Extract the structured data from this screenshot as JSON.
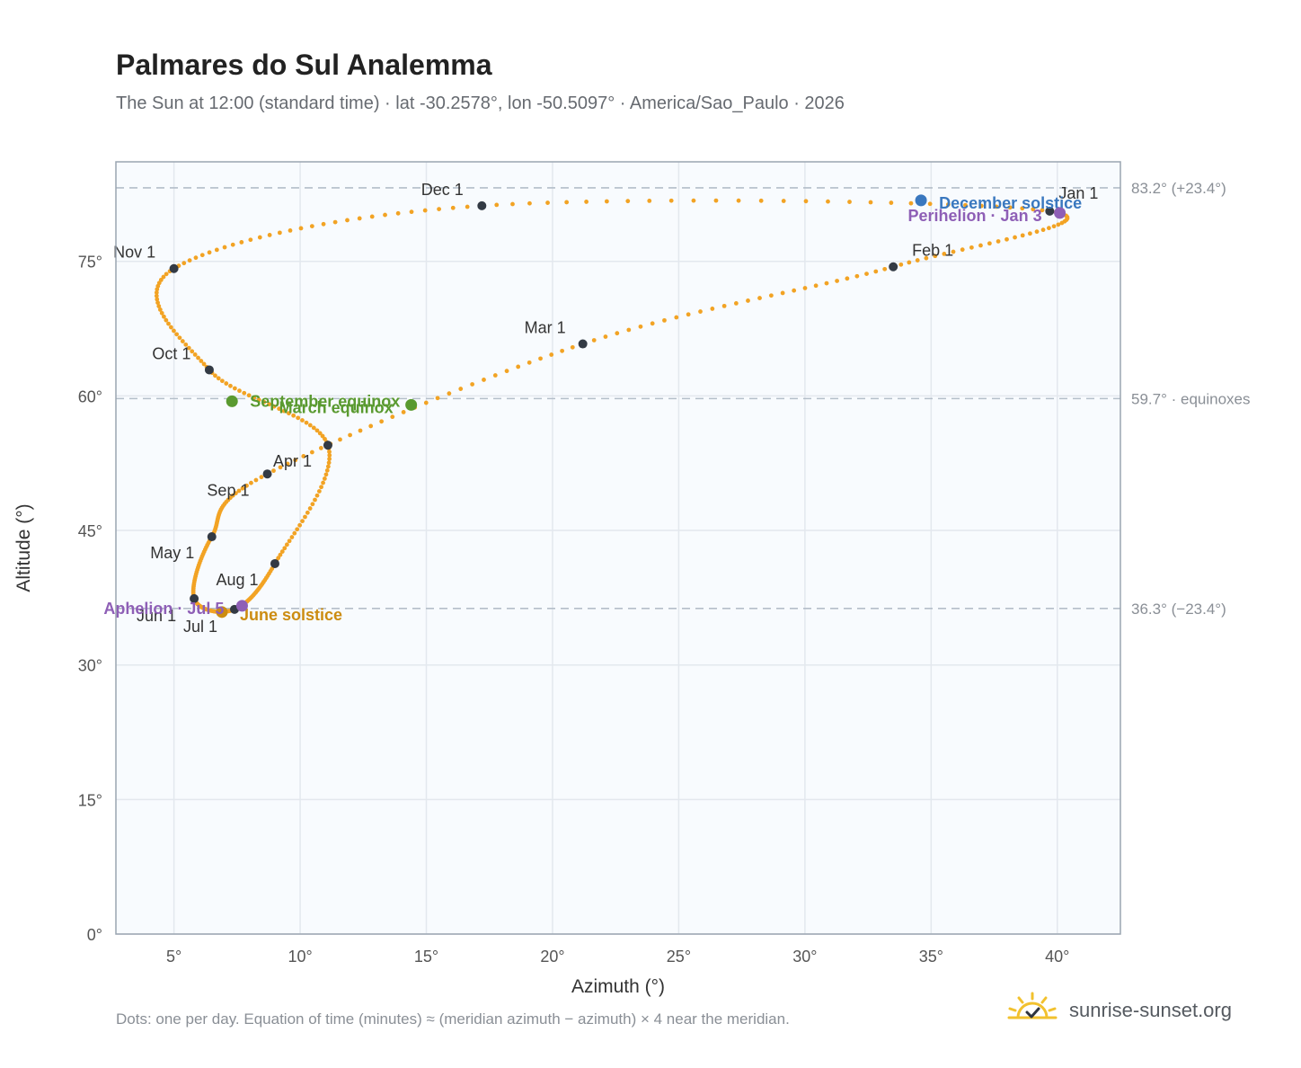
{
  "title": "Palmares do Sul Analemma",
  "subtitle": "The Sun at 12:00 (standard time) · lat -30.2578°, lon -50.5097° · America/Sao_Paulo · 2026",
  "footnote": "Dots: one per day. Equation of time (minutes) ≈ (meridian azimuth − azimuth) × 4 near the meridian.",
  "brand": {
    "name": "sunrise-sunset.org",
    "icon": "sun-logo-icon"
  },
  "colors": {
    "path": "#f2a324",
    "month_marker": "#333a44",
    "equinox": "#5a9a30",
    "december_solstice": "#3a78bf",
    "june_solstice": "#cc8c10",
    "apsis": "#8e5fb6",
    "plot_bg": "#f8fbfe",
    "grid": "#e3e8ee",
    "ref_line": "#b4bec9"
  },
  "chart_data": {
    "type": "scatter",
    "xlabel": "Azimuth (°)",
    "ylabel": "Altitude (°)",
    "xlim": [
      2.7,
      42.5
    ],
    "ylim": [
      0,
      86.1
    ],
    "x_ticks": [
      5,
      10,
      15,
      20,
      25,
      30,
      35,
      40
    ],
    "x_tick_labels": [
      "5°",
      "10°",
      "15°",
      "20°",
      "25°",
      "30°",
      "35°",
      "40°"
    ],
    "y_ticks": [
      0,
      15,
      30,
      45,
      60,
      75
    ],
    "y_tick_labels": [
      "0°",
      "15°",
      "30°",
      "45°",
      "60°",
      "75°"
    ],
    "grid": true,
    "reference_lines": [
      {
        "altitude": 83.2,
        "label": "83.2° (+23.4°)"
      },
      {
        "altitude": 59.7,
        "label": "59.7° · equinoxes"
      },
      {
        "altitude": 36.3,
        "label": "36.3° (−23.4°)"
      }
    ],
    "month_markers": [
      {
        "label": "Jan 1",
        "azimuth": 39.7,
        "altitude": 80.6
      },
      {
        "label": "Feb 1",
        "azimuth": 33.5,
        "altitude": 74.4
      },
      {
        "label": "Mar 1",
        "azimuth": 21.2,
        "altitude": 65.8
      },
      {
        "label": "Apr 1",
        "azimuth": 8.7,
        "altitude": 51.3
      },
      {
        "label": "May 1",
        "azimuth": 6.5,
        "altitude": 44.3
      },
      {
        "label": "Jun 1",
        "azimuth": 5.8,
        "altitude": 37.4
      },
      {
        "label": "Jul 1",
        "azimuth": 7.4,
        "altitude": 36.2
      },
      {
        "label": "Aug 1",
        "azimuth": 9.0,
        "altitude": 41.3
      },
      {
        "label": "Sep 1",
        "azimuth": 11.1,
        "altitude": 54.5
      },
      {
        "label": "Oct 1",
        "azimuth": 6.4,
        "altitude": 62.9
      },
      {
        "label": "Nov 1",
        "azimuth": 5.0,
        "altitude": 74.2
      },
      {
        "label": "Dec 1",
        "azimuth": 17.2,
        "altitude": 81.2
      }
    ],
    "events": [
      {
        "label": "December solstice",
        "azimuth": 34.6,
        "altitude": 81.8,
        "color_key": "december_solstice"
      },
      {
        "label": "Perihelion · Jan 3",
        "azimuth": 40.1,
        "altitude": 80.4,
        "color_key": "apsis"
      },
      {
        "label": "March equinox",
        "azimuth": 14.4,
        "altitude": 59.0,
        "color_key": "equinox"
      },
      {
        "label": "September equinox",
        "azimuth": 7.3,
        "altitude": 59.4,
        "color_key": "equinox"
      },
      {
        "label": "June solstice",
        "azimuth": 6.9,
        "altitude": 35.9,
        "color_key": "june_solstice"
      },
      {
        "label": "Aphelion · Jul 5",
        "azimuth": 7.7,
        "altitude": 36.6,
        "color_key": "apsis"
      }
    ]
  }
}
